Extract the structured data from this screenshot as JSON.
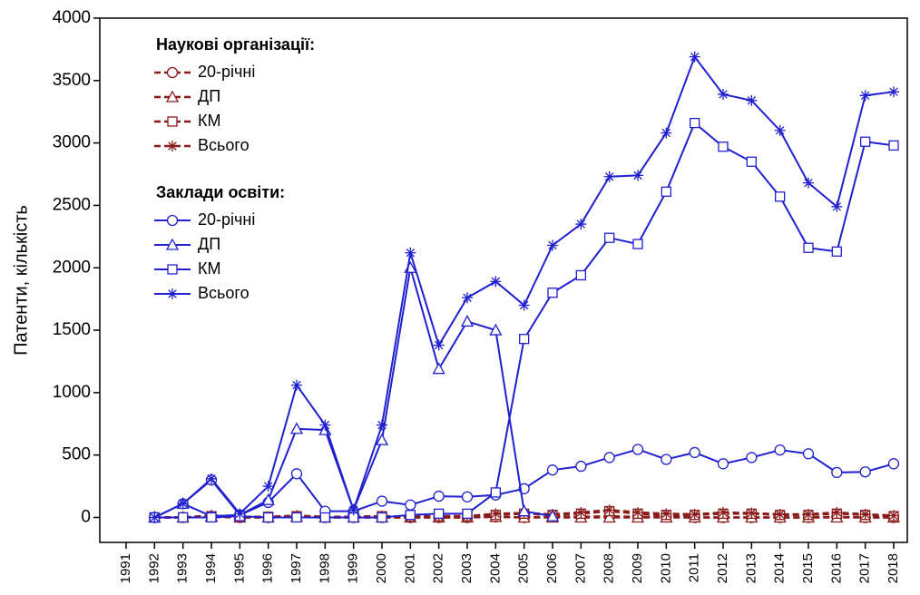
{
  "chart_data": {
    "type": "line",
    "y_label": "Патенти, кількість",
    "legend_titles": [
      "Наукові організації:",
      "Заклади освіти:"
    ],
    "categories": [
      "1991",
      "1992",
      "1993",
      "1994",
      "1995",
      "1996",
      "1997",
      "1998",
      "1999",
      "2000",
      "2001",
      "2002",
      "2003",
      "2004",
      "2005",
      "2006",
      "2007",
      "2008",
      "2009",
      "2010",
      "2011",
      "2012",
      "2013",
      "2014",
      "2015",
      "2016",
      "2017",
      "2018"
    ],
    "series": [
      {
        "name": "20-річні",
        "group": 0,
        "marker": "circle",
        "dashed": true,
        "color": "#8b1a1a",
        "values": [
          null,
          0,
          0,
          5,
          0,
          0,
          5,
          0,
          0,
          0,
          0,
          0,
          0,
          5,
          0,
          5,
          5,
          10,
          5,
          5,
          0,
          0,
          0,
          0,
          0,
          5,
          0,
          0
        ]
      },
      {
        "name": "ДП",
        "group": 0,
        "marker": "triangle",
        "dashed": true,
        "color": "#8b1a1a",
        "values": [
          null,
          0,
          0,
          5,
          0,
          0,
          5,
          0,
          0,
          0,
          0,
          0,
          0,
          5,
          0,
          0,
          0,
          0,
          0,
          0,
          0,
          0,
          0,
          0,
          0,
          0,
          0,
          0
        ]
      },
      {
        "name": "КМ",
        "group": 0,
        "marker": "square",
        "dashed": true,
        "color": "#8b1a1a",
        "values": [
          null,
          0,
          0,
          10,
          5,
          5,
          10,
          5,
          5,
          10,
          5,
          10,
          10,
          20,
          30,
          20,
          30,
          50,
          30,
          20,
          20,
          30,
          30,
          20,
          20,
          30,
          20,
          10
        ]
      },
      {
        "name": "Всього",
        "group": 0,
        "marker": "star",
        "dashed": true,
        "color": "#8b1a1a",
        "values": [
          null,
          0,
          0,
          15,
          5,
          5,
          15,
          5,
          5,
          10,
          5,
          10,
          10,
          30,
          35,
          25,
          40,
          60,
          40,
          30,
          25,
          40,
          35,
          25,
          25,
          40,
          25,
          15
        ]
      },
      {
        "name": "20-річні",
        "group": 1,
        "marker": "circle",
        "dashed": false,
        "color": "#2020d0",
        "values": [
          null,
          0,
          110,
          300,
          20,
          120,
          350,
          50,
          50,
          130,
          100,
          170,
          165,
          180,
          230,
          380,
          410,
          480,
          545,
          465,
          520,
          430,
          480,
          540,
          510,
          360,
          365,
          430
        ]
      },
      {
        "name": "ДП",
        "group": 1,
        "marker": "triangle",
        "dashed": false,
        "color": "#2020d0",
        "values": [
          null,
          0,
          110,
          10,
          20,
          140,
          710,
          700,
          60,
          620,
          2000,
          1190,
          1570,
          1500,
          50,
          10,
          null,
          null,
          null,
          null,
          null,
          null,
          null,
          null,
          null,
          null,
          null,
          null
        ]
      },
      {
        "name": "КМ",
        "group": 1,
        "marker": "square",
        "dashed": false,
        "color": "#2020d0",
        "values": [
          null,
          0,
          0,
          0,
          10,
          0,
          0,
          0,
          0,
          0,
          20,
          30,
          30,
          200,
          1430,
          1800,
          1940,
          2240,
          2190,
          2610,
          3160,
          2970,
          2850,
          2570,
          2160,
          2130,
          3010,
          2980
        ]
      },
      {
        "name": "Всього",
        "group": 1,
        "marker": "star",
        "dashed": false,
        "color": "#2020d0",
        "values": [
          null,
          0,
          110,
          310,
          30,
          250,
          1060,
          740,
          60,
          740,
          2120,
          1380,
          1760,
          1890,
          1700,
          2180,
          2350,
          2730,
          2740,
          3080,
          3690,
          3390,
          3340,
          3100,
          2680,
          2490,
          3380,
          3410
        ]
      }
    ],
    "ylim": [
      -200,
      4000
    ],
    "yticks": [
      0,
      500,
      1000,
      1500,
      2000,
      2500,
      3000,
      3500,
      4000
    ],
    "grid": false
  }
}
